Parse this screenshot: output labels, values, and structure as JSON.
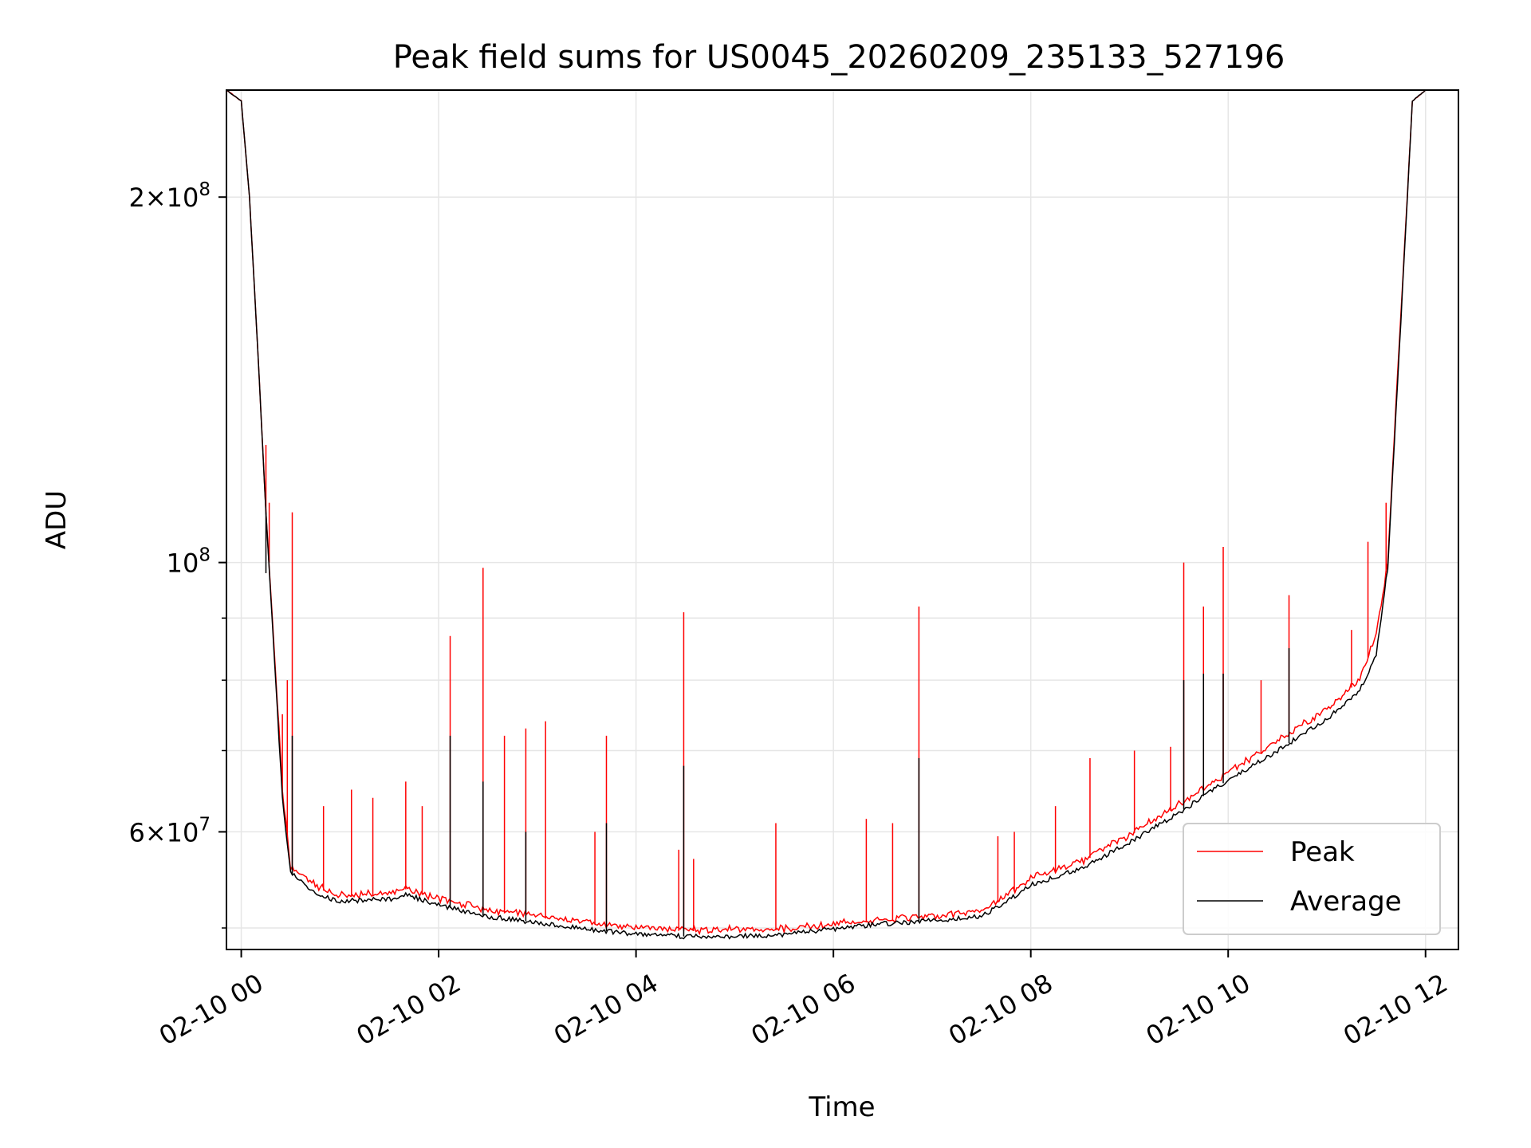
{
  "chart_data": {
    "type": "line",
    "title": "Peak field sums for US0045_20260209_235133_527196",
    "xlabel": "Time",
    "ylabel": "ADU",
    "x_axis": {
      "type": "time",
      "range": [
        "2026-02-09 23:51",
        "2026-02-10 12:20"
      ],
      "ticks": [
        "2026-02-10 00:00",
        "2026-02-10 02:00",
        "2026-02-10 04:00",
        "2026-02-10 06:00",
        "2026-02-10 08:00",
        "2026-02-10 10:00",
        "2026-02-10 12:00"
      ],
      "tick_labels": [
        "02-10 00",
        "02-10 02",
        "02-10 04",
        "02-10 06",
        "02-10 08",
        "02-10 10",
        "02-10 12"
      ]
    },
    "y_axis": {
      "scale": "log",
      "range": [
        48000000,
        245000000
      ],
      "major_ticks": [
        60000000,
        100000000,
        200000000
      ],
      "major_tick_labels": [
        {
          "mantissa": "6",
          "exponent": "7"
        },
        {
          "mantissa": "",
          "exponent": "8"
        },
        {
          "mantissa": "2",
          "exponent": "8"
        }
      ],
      "minor_ticks": [
        50000000,
        70000000,
        80000000,
        90000000
      ]
    },
    "grid": true,
    "legend": {
      "position": "lower right"
    },
    "series": [
      {
        "name": "Peak",
        "color": "#ff0000",
        "baseline": [
          [
            "2026-02-09 23:51",
            245000000
          ],
          [
            "2026-02-10 00:00",
            240000000
          ],
          [
            "2026-02-10 00:05",
            200000000
          ],
          [
            "2026-02-10 00:10",
            150000000
          ],
          [
            "2026-02-10 00:15",
            110000000
          ],
          [
            "2026-02-10 00:20",
            85000000
          ],
          [
            "2026-02-10 00:25",
            65000000
          ],
          [
            "2026-02-10 00:30",
            56000000
          ],
          [
            "2026-02-10 00:45",
            54000000
          ],
          [
            "2026-02-10 01:00",
            53000000
          ],
          [
            "2026-02-10 01:30",
            53200000
          ],
          [
            "2026-02-10 01:40",
            53800000
          ],
          [
            "2026-02-10 02:00",
            52700000
          ],
          [
            "2026-02-10 02:30",
            51600000
          ],
          [
            "2026-02-10 03:00",
            51000000
          ],
          [
            "2026-02-10 03:30",
            50400000
          ],
          [
            "2026-02-10 04:00",
            49900000
          ],
          [
            "2026-02-10 04:30",
            49700000
          ],
          [
            "2026-02-10 05:00",
            49700000
          ],
          [
            "2026-02-10 05:30",
            49800000
          ],
          [
            "2026-02-10 06:00",
            50200000
          ],
          [
            "2026-02-10 06:30",
            50700000
          ],
          [
            "2026-02-10 07:00",
            51000000
          ],
          [
            "2026-02-10 07:30",
            51400000
          ],
          [
            "2026-02-10 07:45",
            53000000
          ],
          [
            "2026-02-10 08:00",
            54800000
          ],
          [
            "2026-02-10 08:30",
            56500000
          ],
          [
            "2026-02-10 09:00",
            59500000
          ],
          [
            "2026-02-10 09:30",
            63000000
          ],
          [
            "2026-02-10 10:00",
            67000000
          ],
          [
            "2026-02-10 10:30",
            71000000
          ],
          [
            "2026-02-10 11:00",
            75500000
          ],
          [
            "2026-02-10 11:20",
            80000000
          ],
          [
            "2026-02-10 11:30",
            87000000
          ],
          [
            "2026-02-10 11:37",
            100000000
          ],
          [
            "2026-02-10 11:45",
            160000000
          ],
          [
            "2026-02-10 11:52",
            240000000
          ],
          [
            "2026-02-10 12:00",
            245000000
          ]
        ],
        "spikes": [
          [
            "2026-02-10 00:15",
            125000000
          ],
          [
            "2026-02-10 00:17",
            112000000
          ],
          [
            "2026-02-10 00:25",
            75000000
          ],
          [
            "2026-02-10 00:28",
            80000000
          ],
          [
            "2026-02-10 00:31",
            110000000
          ],
          [
            "2026-02-10 00:50",
            63000000
          ],
          [
            "2026-02-10 01:07",
            65000000
          ],
          [
            "2026-02-10 01:20",
            64000000
          ],
          [
            "2026-02-10 01:40",
            66000000
          ],
          [
            "2026-02-10 01:50",
            63000000
          ],
          [
            "2026-02-10 02:07",
            87000000
          ],
          [
            "2026-02-10 02:27",
            99000000
          ],
          [
            "2026-02-10 02:40",
            72000000
          ],
          [
            "2026-02-10 02:53",
            73000000
          ],
          [
            "2026-02-10 03:05",
            74000000
          ],
          [
            "2026-02-10 03:35",
            60000000
          ],
          [
            "2026-02-10 03:42",
            72000000
          ],
          [
            "2026-02-10 04:26",
            58000000
          ],
          [
            "2026-02-10 04:29",
            91000000
          ],
          [
            "2026-02-10 04:35",
            57000000
          ],
          [
            "2026-02-10 05:25",
            61000000
          ],
          [
            "2026-02-10 06:20",
            61500000
          ],
          [
            "2026-02-10 06:36",
            61000000
          ],
          [
            "2026-02-10 06:52",
            92000000
          ],
          [
            "2026-02-10 07:40",
            59500000
          ],
          [
            "2026-02-10 07:50",
            60000000
          ],
          [
            "2026-02-10 08:15",
            63000000
          ],
          [
            "2026-02-10 08:36",
            69000000
          ],
          [
            "2026-02-10 09:03",
            70000000
          ],
          [
            "2026-02-10 09:25",
            70500000
          ],
          [
            "2026-02-10 09:33",
            100000000
          ],
          [
            "2026-02-10 09:45",
            92000000
          ],
          [
            "2026-02-10 09:57",
            103000000
          ],
          [
            "2026-02-10 10:20",
            80000000
          ],
          [
            "2026-02-10 10:37",
            94000000
          ],
          [
            "2026-02-10 11:15",
            88000000
          ],
          [
            "2026-02-10 11:25",
            104000000
          ],
          [
            "2026-02-10 11:36",
            112000000
          ]
        ]
      },
      {
        "name": "Average",
        "color": "#000000",
        "baseline": [
          [
            "2026-02-09 23:51",
            245000000
          ],
          [
            "2026-02-10 00:00",
            240000000
          ],
          [
            "2026-02-10 00:05",
            200000000
          ],
          [
            "2026-02-10 00:10",
            150000000
          ],
          [
            "2026-02-10 00:15",
            110000000
          ],
          [
            "2026-02-10 00:20",
            84000000
          ],
          [
            "2026-02-10 00:25",
            64000000
          ],
          [
            "2026-02-10 00:30",
            55500000
          ],
          [
            "2026-02-10 00:45",
            53300000
          ],
          [
            "2026-02-10 01:00",
            52600000
          ],
          [
            "2026-02-10 01:30",
            52800000
          ],
          [
            "2026-02-10 01:40",
            53300000
          ],
          [
            "2026-02-10 02:00",
            52200000
          ],
          [
            "2026-02-10 02:30",
            51100000
          ],
          [
            "2026-02-10 03:00",
            50500000
          ],
          [
            "2026-02-10 03:30",
            49900000
          ],
          [
            "2026-02-10 04:00",
            49400000
          ],
          [
            "2026-02-10 04:30",
            49200000
          ],
          [
            "2026-02-10 05:00",
            49200000
          ],
          [
            "2026-02-10 05:30",
            49400000
          ],
          [
            "2026-02-10 06:00",
            49900000
          ],
          [
            "2026-02-10 06:30",
            50400000
          ],
          [
            "2026-02-10 07:00",
            50700000
          ],
          [
            "2026-02-10 07:30",
            51100000
          ],
          [
            "2026-02-10 07:45",
            52500000
          ],
          [
            "2026-02-10 08:00",
            54300000
          ],
          [
            "2026-02-10 08:30",
            55900000
          ],
          [
            "2026-02-10 09:00",
            58800000
          ],
          [
            "2026-02-10 09:30",
            62200000
          ],
          [
            "2026-02-10 10:00",
            66200000
          ],
          [
            "2026-02-10 10:30",
            70000000
          ],
          [
            "2026-02-10 11:00",
            74300000
          ],
          [
            "2026-02-10 11:20",
            78500000
          ],
          [
            "2026-02-10 11:30",
            84000000
          ],
          [
            "2026-02-10 11:37",
            99000000
          ],
          [
            "2026-02-10 11:45",
            158000000
          ],
          [
            "2026-02-10 11:52",
            240000000
          ],
          [
            "2026-02-10 12:00",
            245000000
          ]
        ],
        "spikes": [
          [
            "2026-02-10 00:15",
            98000000
          ],
          [
            "2026-02-10 00:31",
            72000000
          ],
          [
            "2026-02-10 02:07",
            72000000
          ],
          [
            "2026-02-10 02:27",
            66000000
          ],
          [
            "2026-02-10 02:53",
            60000000
          ],
          [
            "2026-02-10 03:42",
            61000000
          ],
          [
            "2026-02-10 04:29",
            68000000
          ],
          [
            "2026-02-10 06:52",
            69000000
          ],
          [
            "2026-02-10 09:33",
            80000000
          ],
          [
            "2026-02-10 09:45",
            81000000
          ],
          [
            "2026-02-10 09:57",
            81000000
          ],
          [
            "2026-02-10 10:37",
            85000000
          ]
        ]
      }
    ]
  }
}
